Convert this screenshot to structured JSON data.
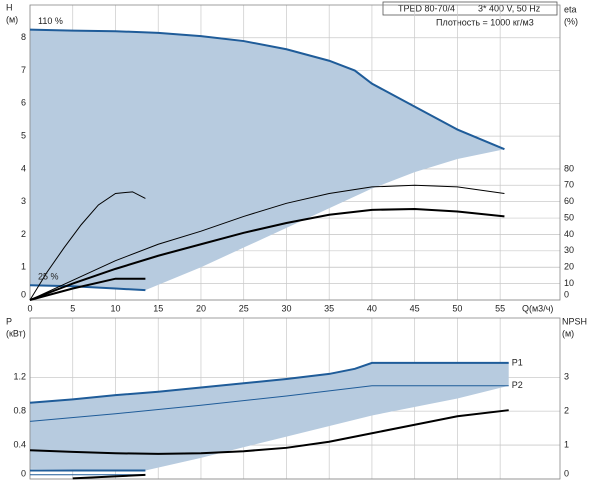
{
  "chart_data": [
    {
      "type": "line",
      "title": "TPED 80-70/4",
      "subtitle": "3* 400 V, 50 Hz",
      "note": "Плотность = 1000 кг/м3",
      "ylabel": [
        "H",
        "(м)"
      ],
      "y2label": [
        "eta",
        "(%)"
      ],
      "xlabel": "Q(м3/ч)",
      "xlim": [
        0,
        62
      ],
      "xticks": [
        0,
        5,
        10,
        15,
        20,
        25,
        30,
        35,
        40,
        45,
        50,
        55
      ],
      "ylim": [
        0,
        9
      ],
      "yticks": [
        0,
        1,
        2,
        3,
        4,
        5,
        6,
        7,
        8
      ],
      "y2lim": [
        0,
        180
      ],
      "y2ticks": [
        0,
        10,
        20,
        30,
        40,
        50,
        60,
        70,
        80
      ],
      "grid": true,
      "series_label": "start",
      "series": [
        {
          "name": "110 %",
          "color": "#1f5c99",
          "width": 2,
          "x": [
            0,
            5,
            10,
            15,
            20,
            25,
            30,
            35,
            38,
            40,
            45,
            50,
            55.5
          ],
          "values": [
            8.25,
            8.22,
            8.2,
            8.15,
            8.05,
            7.9,
            7.65,
            7.3,
            7.0,
            6.6,
            5.9,
            5.2,
            4.6
          ]
        },
        {
          "color": "#b7cbdf",
          "fill_to": 0,
          "x": [
            0,
            13.5,
            20,
            25,
            30,
            35,
            40,
            45,
            50,
            55.5
          ],
          "values": [
            0.45,
            0.3,
            1.0,
            1.6,
            2.2,
            2.8,
            3.4,
            3.9,
            4.3,
            4.6
          ]
        },
        {
          "name": "25 %",
          "color": "#1f5c99",
          "width": 2,
          "x": [
            0,
            5,
            10,
            13.5
          ],
          "values": [
            0.45,
            0.42,
            0.35,
            0.3
          ]
        },
        {
          "color": "#000000",
          "width": 1,
          "axis": "y2",
          "x": [
            0,
            2,
            4,
            6,
            8,
            10,
            12,
            13.5
          ],
          "values": [
            0,
            17,
            32,
            46,
            58,
            65,
            66,
            62
          ]
        },
        {
          "color": "#000000",
          "width": 1,
          "axis": "y2",
          "x": [
            0,
            5,
            10,
            15,
            20,
            25,
            30,
            35,
            40,
            45,
            50,
            55.5
          ],
          "values": [
            0,
            12,
            24,
            34,
            42,
            51,
            59,
            65,
            69,
            70,
            69,
            65
          ]
        },
        {
          "color": "#000000",
          "width": 2,
          "axis": "y2",
          "x": [
            0,
            5,
            10,
            15,
            20,
            25,
            30,
            35,
            40,
            45,
            50,
            55.5
          ],
          "values": [
            0,
            10,
            19,
            27,
            34,
            41,
            47,
            52,
            55,
            55.5,
            54,
            51
          ]
        },
        {
          "color": "#000000",
          "width": 2,
          "axis": "y2",
          "x": [
            0,
            5,
            10,
            13.5
          ],
          "values": [
            0,
            7,
            13,
            13
          ]
        }
      ]
    },
    {
      "type": "line",
      "ylabel": [
        "P",
        "(кВт)"
      ],
      "y2label": [
        "NPSH",
        "(м)"
      ],
      "xlim": [
        0,
        62
      ],
      "shared_x": true,
      "ylim": [
        0,
        1.9
      ],
      "yticks": [
        0,
        0.4,
        0.8,
        1.2
      ],
      "y2lim": [
        0,
        4.75
      ],
      "y2ticks": [
        0,
        1,
        2,
        3
      ],
      "grid": true,
      "series_label": "end",
      "series": [
        {
          "name": "P1",
          "color": "#1f5c99",
          "width": 2,
          "x": [
            0,
            5,
            10,
            15,
            20,
            25,
            30,
            35,
            38,
            40,
            45,
            50,
            56
          ],
          "values": [
            0.9,
            0.94,
            0.99,
            1.03,
            1.08,
            1.13,
            1.18,
            1.24,
            1.3,
            1.37,
            1.37,
            1.37,
            1.37
          ]
        },
        {
          "color": "#b7cbdf",
          "fill_to": 0,
          "x": [
            0,
            13.5,
            20,
            30,
            40,
            50,
            56
          ],
          "values": [
            0.12,
            0.1,
            0.25,
            0.5,
            0.75,
            0.95,
            1.1
          ]
        },
        {
          "name": "P2",
          "color": "#1f5c99",
          "width": 1,
          "x": [
            0,
            10,
            20,
            30,
            40,
            56
          ],
          "values": [
            0.68,
            0.77,
            0.87,
            0.98,
            1.1,
            1.1
          ]
        },
        {
          "color": "#000000",
          "width": 2,
          "axis": "y2",
          "x": [
            0,
            5,
            10,
            15,
            20,
            25,
            30,
            35,
            40,
            45,
            50,
            56
          ],
          "values": [
            0.85,
            0.8,
            0.76,
            0.74,
            0.76,
            0.82,
            0.92,
            1.1,
            1.35,
            1.6,
            1.85,
            2.03
          ]
        },
        {
          "color": "#1f5c99",
          "width": 2,
          "x": [
            0,
            13.5
          ],
          "values": [
            0.1,
            0.1
          ]
        },
        {
          "color": "#1f5c99",
          "width": 1,
          "x": [
            0,
            13.5
          ],
          "values": [
            0.05,
            0.05
          ]
        },
        {
          "color": "#000000",
          "width": 2,
          "axis": "y2",
          "x": [
            5,
            13.5
          ],
          "values": [
            0.02,
            0.12
          ]
        }
      ]
    }
  ]
}
